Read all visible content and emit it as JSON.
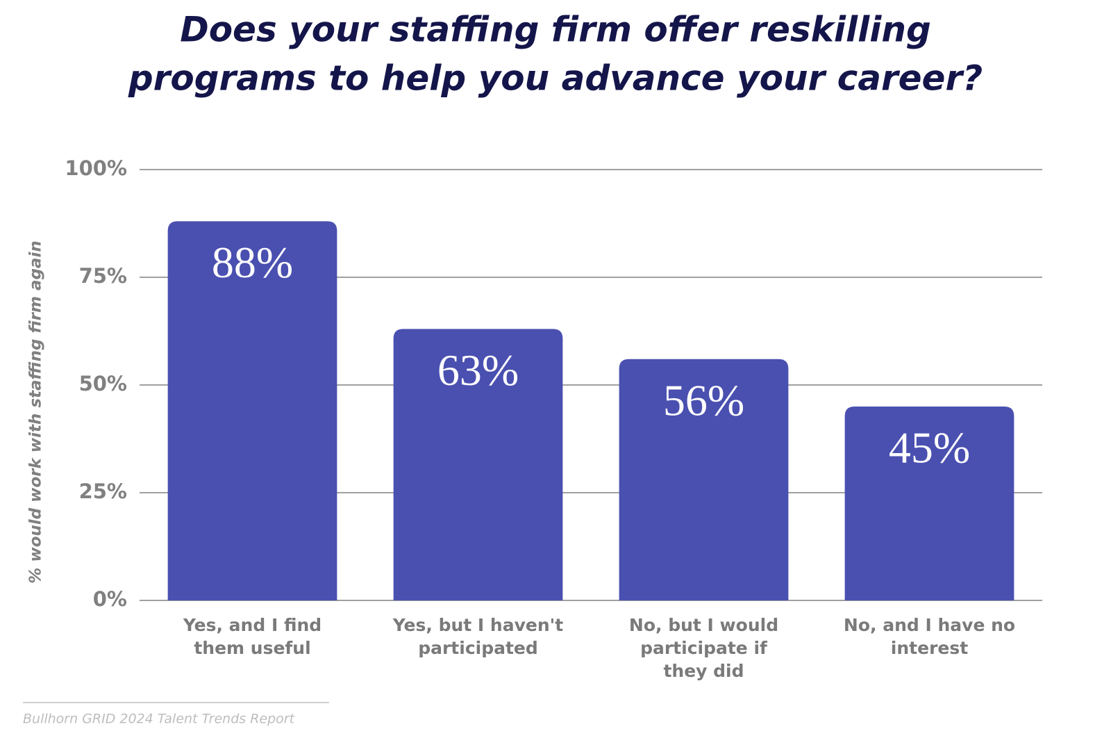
{
  "chart_data": {
    "type": "bar",
    "title": [
      "Does your staffing firm offer reskilling",
      "programs to help you advance your career?"
    ],
    "y_axis_label": "% would work with staffing firm again",
    "categories": [
      "Yes, and I find them useful",
      "Yes, but I haven't participated",
      "No, but I would participate if they did",
      "No, and I have no interest"
    ],
    "values": [
      88,
      63,
      56,
      45
    ],
    "value_labels": [
      "88%",
      "63%",
      "56%",
      "45%"
    ],
    "color": "#4a50b0",
    "ylim": [
      0,
      100
    ],
    "yticks": [
      {
        "value": 0,
        "label": "0%"
      },
      {
        "value": 25,
        "label": "25%"
      },
      {
        "value": 50,
        "label": "50%"
      },
      {
        "value": 75,
        "label": "75%"
      },
      {
        "value": 100,
        "label": "100%"
      }
    ],
    "grid": true,
    "source": "Bullhorn GRID 2024 Talent Trends Report"
  }
}
